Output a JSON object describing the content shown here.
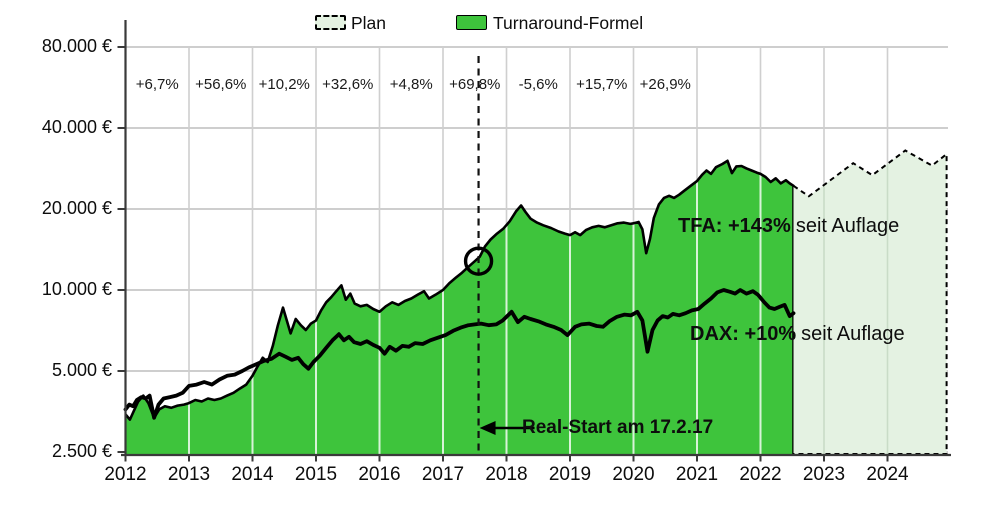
{
  "legend": {
    "plan_label": "Plan",
    "tfa_label": "Turnaround-Formel"
  },
  "annotations": {
    "yearly_returns": [
      "+6,7%",
      "+56,6%",
      "+10,2%",
      "+32,6%",
      "+4,8%",
      "+69,8%",
      "-5,6%",
      "+15,7%",
      "+26,9%"
    ],
    "tfa_bold": "TFA: +143%",
    "tfa_rest": "seit Auflage",
    "dax_bold": "DAX: +10%",
    "dax_rest": "seit Auflage",
    "real_start": "Real-Start am 17.2.17"
  },
  "chart_data": {
    "type": "area",
    "y_scale": "log2",
    "x_range": [
      2012,
      2025
    ],
    "grid": true,
    "legend_position": "top-center",
    "y_ticks": [
      {
        "label": "2.500 €",
        "value": 2500
      },
      {
        "label": "5.000 €",
        "value": 5000
      },
      {
        "label": "10.000 €",
        "value": 10000
      },
      {
        "label": "20.000 €",
        "value": 20000
      },
      {
        "label": "40.000 €",
        "value": 40000
      },
      {
        "label": "80.000 €",
        "value": 80000
      }
    ],
    "x_ticks": [
      "2012",
      "2013",
      "2014",
      "2015",
      "2016",
      "2017",
      "2018",
      "2019",
      "2020",
      "2021",
      "2022",
      "2023",
      "2024"
    ],
    "markers": {
      "real_start_year": 2017.56,
      "real_start_circle_value": 12800
    },
    "colors": {
      "tfa_fill": "#3ec43c",
      "tfa_edge": "#000000",
      "plan_fill": "#e4f2e2",
      "plan_edge": "#000000",
      "dax_line": "#000000",
      "grid_h": "#bdbdbd",
      "grid_v": "#cfcfcf",
      "grid_v_on_green": "#ffffff",
      "grid_v_on_plan": "#c9dcc7",
      "axis": "#3a3a3a"
    },
    "series": [
      {
        "name": "Turnaround-Formel",
        "type": "area",
        "points": [
          [
            2012.0,
            3450
          ],
          [
            2012.07,
            3300
          ],
          [
            2012.13,
            3550
          ],
          [
            2012.2,
            3850
          ],
          [
            2012.28,
            4050
          ],
          [
            2012.36,
            3800
          ],
          [
            2012.45,
            3350
          ],
          [
            2012.53,
            3600
          ],
          [
            2012.62,
            3700
          ],
          [
            2012.72,
            3650
          ],
          [
            2012.82,
            3720
          ],
          [
            2012.92,
            3750
          ],
          [
            2013.0,
            3800
          ],
          [
            2013.1,
            3900
          ],
          [
            2013.2,
            3850
          ],
          [
            2013.3,
            3950
          ],
          [
            2013.4,
            3900
          ],
          [
            2013.5,
            3950
          ],
          [
            2013.6,
            4050
          ],
          [
            2013.7,
            4150
          ],
          [
            2013.8,
            4300
          ],
          [
            2013.9,
            4450
          ],
          [
            2014.0,
            4800
          ],
          [
            2014.08,
            5200
          ],
          [
            2014.16,
            5600
          ],
          [
            2014.24,
            5400
          ],
          [
            2014.32,
            6200
          ],
          [
            2014.4,
            7400
          ],
          [
            2014.48,
            8600
          ],
          [
            2014.54,
            7700
          ],
          [
            2014.6,
            6900
          ],
          [
            2014.68,
            7800
          ],
          [
            2014.76,
            7400
          ],
          [
            2014.84,
            7100
          ],
          [
            2014.92,
            7500
          ],
          [
            2015.0,
            7700
          ],
          [
            2015.08,
            8400
          ],
          [
            2015.16,
            9000
          ],
          [
            2015.24,
            9400
          ],
          [
            2015.32,
            9900
          ],
          [
            2015.4,
            10400
          ],
          [
            2015.47,
            9200
          ],
          [
            2015.54,
            9700
          ],
          [
            2015.61,
            8900
          ],
          [
            2015.7,
            8700
          ],
          [
            2015.8,
            8800
          ],
          [
            2015.9,
            8500
          ],
          [
            2016.0,
            8300
          ],
          [
            2016.1,
            8700
          ],
          [
            2016.2,
            9000
          ],
          [
            2016.3,
            8800
          ],
          [
            2016.4,
            9100
          ],
          [
            2016.5,
            9300
          ],
          [
            2016.6,
            9600
          ],
          [
            2016.7,
            9900
          ],
          [
            2016.78,
            9300
          ],
          [
            2016.88,
            9600
          ],
          [
            2017.0,
            10000
          ],
          [
            2017.1,
            10600
          ],
          [
            2017.2,
            11100
          ],
          [
            2017.3,
            11600
          ],
          [
            2017.4,
            12200
          ],
          [
            2017.5,
            12800
          ],
          [
            2017.58,
            13300
          ],
          [
            2017.66,
            14500
          ],
          [
            2017.75,
            15400
          ],
          [
            2017.85,
            16200
          ],
          [
            2017.95,
            16900
          ],
          [
            2018.05,
            18000
          ],
          [
            2018.15,
            19600
          ],
          [
            2018.23,
            20600
          ],
          [
            2018.3,
            19500
          ],
          [
            2018.38,
            18400
          ],
          [
            2018.48,
            17800
          ],
          [
            2018.58,
            17400
          ],
          [
            2018.7,
            17000
          ],
          [
            2018.82,
            16500
          ],
          [
            2018.92,
            16200
          ],
          [
            2019.0,
            16000
          ],
          [
            2019.08,
            16400
          ],
          [
            2019.16,
            16000
          ],
          [
            2019.25,
            16700
          ],
          [
            2019.35,
            17100
          ],
          [
            2019.45,
            17300
          ],
          [
            2019.55,
            17100
          ],
          [
            2019.65,
            17400
          ],
          [
            2019.75,
            17700
          ],
          [
            2019.85,
            17800
          ],
          [
            2019.95,
            17600
          ],
          [
            2020.0,
            17700
          ],
          [
            2020.08,
            17900
          ],
          [
            2020.14,
            16800
          ],
          [
            2020.2,
            13700
          ],
          [
            2020.26,
            15500
          ],
          [
            2020.32,
            18500
          ],
          [
            2020.4,
            20800
          ],
          [
            2020.48,
            22000
          ],
          [
            2020.56,
            22400
          ],
          [
            2020.64,
            22000
          ],
          [
            2020.72,
            22600
          ],
          [
            2020.8,
            23400
          ],
          [
            2020.9,
            24400
          ],
          [
            2021.0,
            25400
          ],
          [
            2021.08,
            26800
          ],
          [
            2021.15,
            27800
          ],
          [
            2021.22,
            27000
          ],
          [
            2021.3,
            28600
          ],
          [
            2021.4,
            29400
          ],
          [
            2021.48,
            30200
          ],
          [
            2021.55,
            27200
          ],
          [
            2021.62,
            28800
          ],
          [
            2021.7,
            28900
          ],
          [
            2021.78,
            28300
          ],
          [
            2021.86,
            27800
          ],
          [
            2021.94,
            27300
          ],
          [
            2022.0,
            27000
          ],
          [
            2022.08,
            26300
          ],
          [
            2022.16,
            25200
          ],
          [
            2022.24,
            26000
          ],
          [
            2022.32,
            24900
          ],
          [
            2022.4,
            25600
          ],
          [
            2022.46,
            24900
          ],
          [
            2022.52,
            24400
          ]
        ]
      },
      {
        "name": "Plan",
        "type": "area-dashed",
        "points": [
          [
            2022.52,
            24400
          ],
          [
            2022.76,
            22300
          ],
          [
            2023.46,
            29600
          ],
          [
            2023.76,
            26700
          ],
          [
            2024.28,
            33000
          ],
          [
            2024.7,
            29000
          ],
          [
            2024.93,
            32000
          ]
        ]
      },
      {
        "name": "DAX",
        "type": "line",
        "points": [
          [
            2012.0,
            3600
          ],
          [
            2012.06,
            3750
          ],
          [
            2012.12,
            3700
          ],
          [
            2012.18,
            3900
          ],
          [
            2012.25,
            4000
          ],
          [
            2012.32,
            3950
          ],
          [
            2012.38,
            4050
          ],
          [
            2012.45,
            3350
          ],
          [
            2012.52,
            3750
          ],
          [
            2012.6,
            3950
          ],
          [
            2012.7,
            4000
          ],
          [
            2012.8,
            4050
          ],
          [
            2012.9,
            4150
          ],
          [
            2013.0,
            4400
          ],
          [
            2013.12,
            4450
          ],
          [
            2013.24,
            4550
          ],
          [
            2013.36,
            4450
          ],
          [
            2013.48,
            4650
          ],
          [
            2013.6,
            4800
          ],
          [
            2013.72,
            4850
          ],
          [
            2013.84,
            5000
          ],
          [
            2013.94,
            5150
          ],
          [
            2014.06,
            5300
          ],
          [
            2014.18,
            5450
          ],
          [
            2014.3,
            5550
          ],
          [
            2014.42,
            5800
          ],
          [
            2014.52,
            5650
          ],
          [
            2014.62,
            5500
          ],
          [
            2014.72,
            5600
          ],
          [
            2014.8,
            5300
          ],
          [
            2014.88,
            5100
          ],
          [
            2014.96,
            5400
          ],
          [
            2015.06,
            5700
          ],
          [
            2015.16,
            6100
          ],
          [
            2015.26,
            6500
          ],
          [
            2015.36,
            6850
          ],
          [
            2015.44,
            6500
          ],
          [
            2015.52,
            6700
          ],
          [
            2015.6,
            6400
          ],
          [
            2015.7,
            6300
          ],
          [
            2015.8,
            6450
          ],
          [
            2015.9,
            6250
          ],
          [
            2016.0,
            6100
          ],
          [
            2016.08,
            5800
          ],
          [
            2016.16,
            6150
          ],
          [
            2016.26,
            5950
          ],
          [
            2016.36,
            6200
          ],
          [
            2016.46,
            6150
          ],
          [
            2016.56,
            6350
          ],
          [
            2016.68,
            6300
          ],
          [
            2016.8,
            6500
          ],
          [
            2016.92,
            6650
          ],
          [
            2017.04,
            6800
          ],
          [
            2017.16,
            7050
          ],
          [
            2017.28,
            7250
          ],
          [
            2017.4,
            7400
          ],
          [
            2017.5,
            7450
          ],
          [
            2017.6,
            7500
          ],
          [
            2017.72,
            7400
          ],
          [
            2017.84,
            7450
          ],
          [
            2017.94,
            7700
          ],
          [
            2018.08,
            8300
          ],
          [
            2018.18,
            7600
          ],
          [
            2018.28,
            7950
          ],
          [
            2018.38,
            7800
          ],
          [
            2018.5,
            7650
          ],
          [
            2018.62,
            7450
          ],
          [
            2018.74,
            7300
          ],
          [
            2018.86,
            7100
          ],
          [
            2018.96,
            6800
          ],
          [
            2019.08,
            7300
          ],
          [
            2019.18,
            7450
          ],
          [
            2019.3,
            7500
          ],
          [
            2019.42,
            7350
          ],
          [
            2019.52,
            7300
          ],
          [
            2019.62,
            7650
          ],
          [
            2019.74,
            7950
          ],
          [
            2019.86,
            8100
          ],
          [
            2019.96,
            8050
          ],
          [
            2020.06,
            8300
          ],
          [
            2020.14,
            7700
          ],
          [
            2020.22,
            5900
          ],
          [
            2020.3,
            7100
          ],
          [
            2020.38,
            7700
          ],
          [
            2020.46,
            8000
          ],
          [
            2020.54,
            7900
          ],
          [
            2020.62,
            8150
          ],
          [
            2020.72,
            8050
          ],
          [
            2020.82,
            8200
          ],
          [
            2020.92,
            8400
          ],
          [
            2021.02,
            8500
          ],
          [
            2021.12,
            8900
          ],
          [
            2021.22,
            9300
          ],
          [
            2021.32,
            9800
          ],
          [
            2021.42,
            10000
          ],
          [
            2021.52,
            9850
          ],
          [
            2021.6,
            9700
          ],
          [
            2021.68,
            10000
          ],
          [
            2021.78,
            9700
          ],
          [
            2021.88,
            9900
          ],
          [
            2021.96,
            9600
          ],
          [
            2022.06,
            9000
          ],
          [
            2022.14,
            8600
          ],
          [
            2022.22,
            8500
          ],
          [
            2022.3,
            8650
          ],
          [
            2022.38,
            8800
          ],
          [
            2022.46,
            8000
          ],
          [
            2022.52,
            8200
          ]
        ]
      }
    ]
  }
}
